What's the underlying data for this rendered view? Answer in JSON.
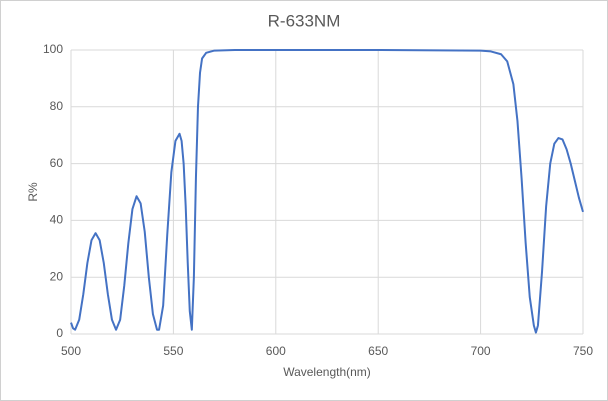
{
  "chart_data": {
    "type": "line",
    "title": "R-633NM",
    "x_label": "Wavelength(nm)",
    "y_label": "R%",
    "x": [
      500,
      501,
      502,
      504,
      506,
      508,
      510,
      512,
      514,
      516,
      518,
      520,
      522,
      524,
      526,
      528,
      530,
      532,
      534,
      536,
      538,
      540,
      542,
      543,
      545,
      547,
      549,
      551,
      553,
      554,
      555,
      556,
      557,
      558,
      559,
      560,
      561,
      562,
      563,
      564,
      566,
      570,
      580,
      600,
      650,
      700,
      705,
      710,
      713,
      716,
      718,
      720,
      722,
      724,
      726,
      727,
      728,
      730,
      732,
      734,
      736,
      738,
      740,
      742,
      744,
      746,
      748,
      750
    ],
    "series": [
      {
        "name": "R%",
        "color": "#4472c4",
        "values": [
          4,
          2,
          1.5,
          5,
          14,
          25,
          33,
          35.5,
          33,
          25,
          14,
          5,
          1.5,
          5,
          17,
          32,
          44,
          48.5,
          46,
          36,
          20,
          7,
          1.5,
          1.5,
          10,
          35,
          57,
          68,
          70.5,
          68,
          60,
          45,
          25,
          8,
          1.5,
          20,
          55,
          80,
          92,
          97,
          99,
          99.8,
          100,
          100,
          100,
          99.8,
          99.5,
          98.5,
          96,
          88,
          75,
          55,
          32,
          13,
          3,
          0.5,
          3,
          22,
          45,
          60,
          67,
          69,
          68.5,
          65,
          60,
          54,
          48,
          43
        ]
      }
    ],
    "xlim": [
      500,
      750
    ],
    "xticks": [
      500,
      550,
      600,
      650,
      700,
      750
    ],
    "ylim": [
      0,
      100
    ],
    "yticks": [
      0,
      20,
      40,
      60,
      80,
      100
    ],
    "grid": true
  }
}
